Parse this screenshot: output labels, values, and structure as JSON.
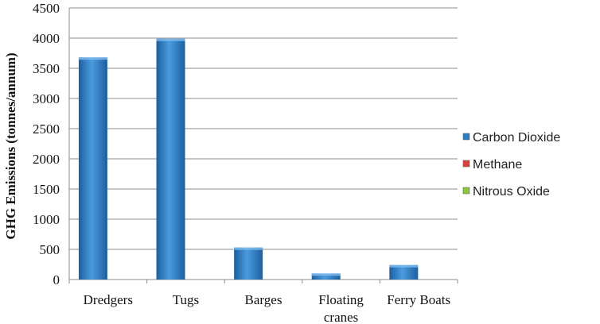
{
  "chart_data": {
    "type": "bar",
    "title": "",
    "xlabel": "",
    "ylabel": "GHG Emissions (tonnes/annum)",
    "ylim": [
      0,
      4500
    ],
    "yticks": [
      0,
      500,
      1000,
      1500,
      2000,
      2500,
      3000,
      3500,
      4000,
      4500
    ],
    "grid": true,
    "legend_position": "right",
    "categories": [
      [
        "Dredgers"
      ],
      [
        "Tugs"
      ],
      [
        "Barges"
      ],
      [
        "Floating",
        "cranes"
      ],
      [
        "Ferry Boats"
      ]
    ],
    "series": [
      {
        "name": "Carbon Dioxide",
        "color": "#2f7ec4",
        "values": [
          3680,
          3990,
          530,
          100,
          240
        ]
      },
      {
        "name": "Methane",
        "color": "#d9413c",
        "values": [
          0,
          0,
          0,
          0,
          0
        ]
      },
      {
        "name": "Nitrous Oxide",
        "color": "#8cc63e",
        "values": [
          0,
          0,
          0,
          0,
          0
        ]
      }
    ]
  }
}
